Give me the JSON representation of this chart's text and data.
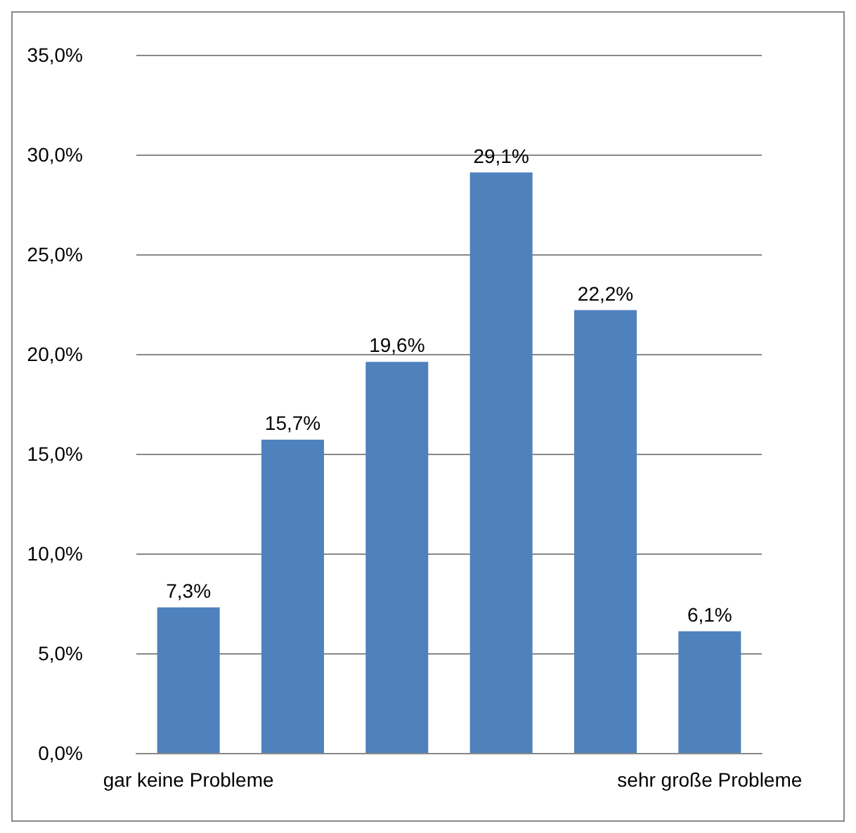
{
  "chart_data": {
    "type": "bar",
    "categories": [
      "gar keine Probleme",
      null,
      null,
      null,
      null,
      "sehr große Probleme"
    ],
    "values": [
      7.3,
      15.7,
      19.6,
      29.1,
      22.2,
      6.1
    ],
    "value_labels": [
      "7,3%",
      "15,7%",
      "19,6%",
      "29,1%",
      "22,2%",
      "6,1%"
    ],
    "color": "#4f81bd",
    "ylim": [
      0,
      35
    ],
    "yticks": [
      {
        "value": 0,
        "label": "0,0%"
      },
      {
        "value": 5,
        "label": "5,0%"
      },
      {
        "value": 10,
        "label": "10,0%"
      },
      {
        "value": 15,
        "label": "15,0%"
      },
      {
        "value": 20,
        "label": "20,0%"
      },
      {
        "value": 25,
        "label": "25,0%"
      },
      {
        "value": 30,
        "label": "30,0%"
      },
      {
        "value": 35,
        "label": "35,0%"
      }
    ],
    "grid": "y"
  }
}
